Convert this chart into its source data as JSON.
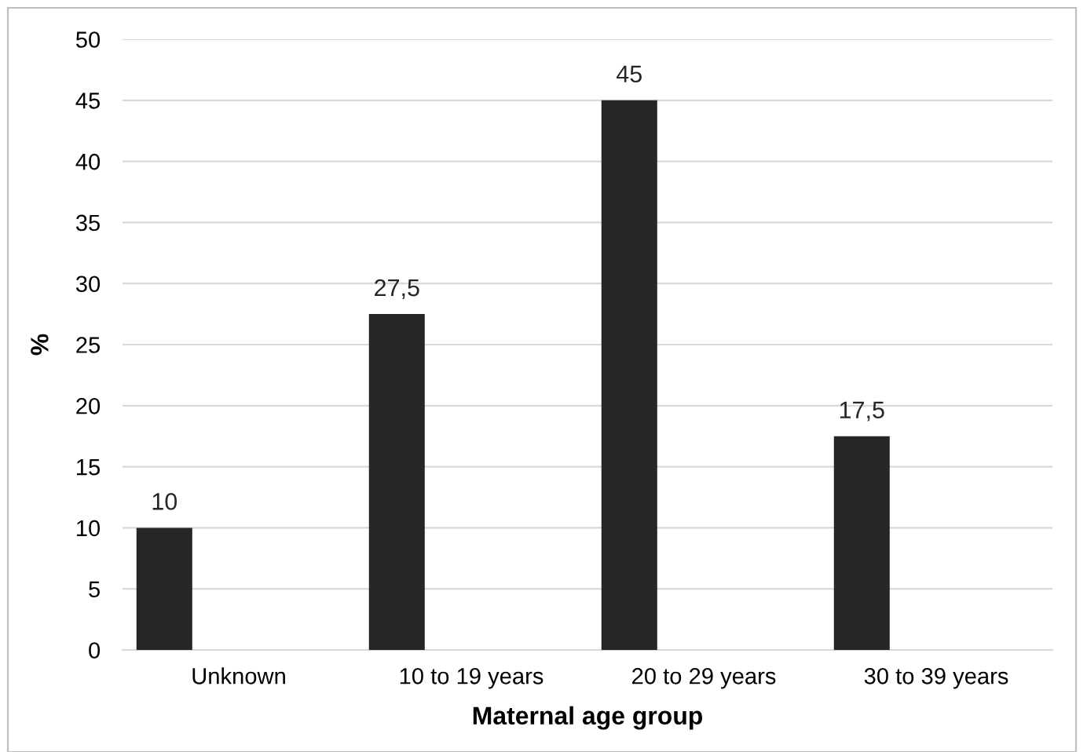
{
  "chart_data": {
    "type": "bar",
    "xlabel": "Maternal age group",
    "ylabel": "%",
    "categories": [
      "Unknown",
      "10 to 19 years",
      "20 to 29 years",
      "30 to 39 years"
    ],
    "values": [
      10,
      27.5,
      45,
      17.5
    ],
    "value_labels": [
      "10",
      "27,5",
      "45",
      "17,5"
    ],
    "color": "#262626",
    "ylim": [
      0,
      50
    ],
    "yticks": [
      0,
      5,
      10,
      15,
      20,
      25,
      30,
      35,
      40,
      45,
      50
    ],
    "grid": "y",
    "legend": false
  }
}
